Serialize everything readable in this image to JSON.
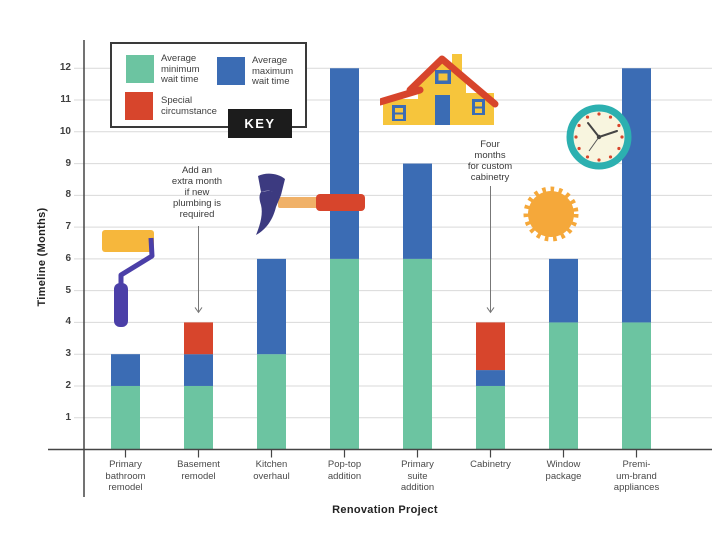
{
  "page": {
    "background": "#ffffff"
  },
  "legend": {
    "key_label": "KEY",
    "items": [
      {
        "name": "Average minimum wait time",
        "lines": [
          "Average",
          "minimum",
          "wait time"
        ],
        "color": "#6cc4a1"
      },
      {
        "name": "Average maximum wait time",
        "lines": [
          "Average",
          "maximum",
          "wait time"
        ],
        "color": "#3b6cb4"
      },
      {
        "name": "Special circumstance",
        "lines": [
          "Special",
          "circumstance"
        ],
        "color": "#d7452c"
      }
    ]
  },
  "axes": {
    "x_title": "Renovation Project",
    "y_title": "Timeline (Months)"
  },
  "chart_data": {
    "type": "bar",
    "stacked": true,
    "orientation": "vertical",
    "title": "",
    "xlabel": "Renovation Project",
    "ylabel": "Timeline (Months)",
    "ylim": [
      0,
      13
    ],
    "yticks": [
      1,
      2,
      3,
      4,
      5,
      6,
      7,
      8,
      9,
      10,
      11,
      12
    ],
    "grid": "horizontal",
    "legend_position": "top-left",
    "categories": [
      "Primary bathroom remodel",
      "Basement remodel",
      "Kitchen overhaul",
      "Pop-top addition",
      "Primary suite addition",
      "Cabinetry",
      "Window package",
      "Premium-brand appliances"
    ],
    "category_label_lines": [
      [
        "Primary",
        "bathroom",
        "remodel"
      ],
      [
        "Basement",
        "remodel"
      ],
      [
        "Kitchen",
        "overhaul"
      ],
      [
        "Pop-top",
        "addition"
      ],
      [
        "Primary",
        "suite",
        "addition"
      ],
      [
        "Cabinetry"
      ],
      [
        "Window",
        "package"
      ],
      [
        "Premi-",
        "um-brand",
        "appliances"
      ]
    ],
    "series": [
      {
        "name": "Average minimum wait time",
        "color": "#6cc4a1",
        "values": [
          2,
          2,
          3,
          6,
          6,
          2,
          4,
          4
        ]
      },
      {
        "name": "Average maximum wait time",
        "color": "#3b6cb4",
        "values": [
          1,
          1,
          3,
          6,
          3,
          0.5,
          2,
          8
        ]
      },
      {
        "name": "Special circumstance",
        "color": "#d7452c",
        "values": [
          0,
          1,
          0,
          0,
          0,
          1.5,
          0,
          0
        ]
      }
    ],
    "bars": [
      {
        "category": "Primary bathroom remodel",
        "min_wait": 2,
        "max_wait": 3
      },
      {
        "category": "Basement remodel",
        "min_wait": 2,
        "max_wait": 3,
        "special_to": 4
      },
      {
        "category": "Kitchen overhaul",
        "min_wait": 3,
        "max_wait": 6
      },
      {
        "category": "Pop-top addition",
        "min_wait": 6,
        "max_wait": 12
      },
      {
        "category": "Primary suite addition",
        "min_wait": 6,
        "max_wait": 9
      },
      {
        "category": "Cabinetry",
        "min_wait": 2,
        "max_wait": 2.5,
        "special_to": 4
      },
      {
        "category": "Window package",
        "min_wait": 4,
        "max_wait": 6
      },
      {
        "category": "Premium-brand appliances",
        "min_wait": 4,
        "max_wait": 12
      }
    ],
    "annotations": [
      {
        "text": "Add an extra month if new plumbing is required",
        "lines": [
          "Add an",
          "extra month",
          "if new",
          "plumbing is",
          "required"
        ],
        "target_category": "Basement remodel",
        "target_category_index": 1,
        "points_to_value": 4
      },
      {
        "text": "Four months for custom cabinetry",
        "lines": [
          "Four",
          "months",
          "for custom",
          "cabinetry"
        ],
        "target_category": "Cabinetry",
        "target_category_index": 5,
        "points_to_value": 4
      }
    ]
  },
  "decorations": {
    "icons": [
      "paint-roller-icon",
      "hammer-icon",
      "house-icon",
      "sun-icon",
      "clock-icon"
    ]
  },
  "colors": {
    "min_wait": "#6cc4a1",
    "max_wait": "#3b6cb4",
    "special": "#d7452c",
    "axis": "#454545",
    "gridline": "#d9d9d9",
    "text": "#3f3f3f",
    "key_bg": "#1c1c1c",
    "key_text": "#ffffff",
    "icon_orange": "#f5a83a",
    "icon_yellow": "#f6c53c",
    "icon_purple": "#4b3fa8",
    "icon_navy": "#3c3a80",
    "icon_teal": "#2cb0b0",
    "icon_cream": "#f8f5df"
  }
}
